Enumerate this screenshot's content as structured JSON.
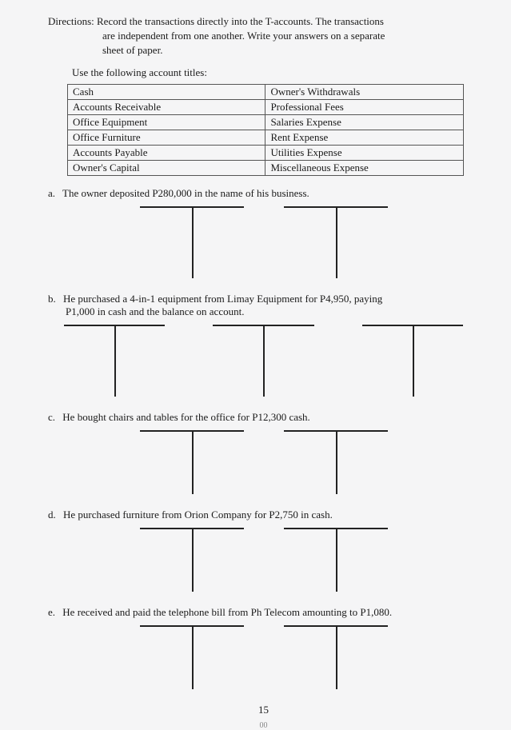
{
  "directions": {
    "label": "Directions:",
    "text1": "Record the transactions directly into the T-accounts. The transactions",
    "text2": "are independent from one another. Write your answers on a separate",
    "text3": "sheet of paper."
  },
  "use_titles": "Use the following account titles:",
  "accounts": {
    "left": [
      "Cash",
      "Accounts Receivable",
      "Office Equipment",
      "Office Furniture",
      "Accounts Payable",
      "Owner's Capital"
    ],
    "right": [
      "Owner's Withdrawals",
      "Professional Fees",
      "Salaries Expense",
      "Rent Expense",
      "Utilities Expense",
      "Miscellaneous Expense"
    ]
  },
  "items": {
    "a": {
      "label": "a.",
      "text": "The owner deposited P280,000 in the name of his business.",
      "t_count": 2
    },
    "b": {
      "label": "b.",
      "text1": "He purchased a 4-in-1 equipment from Limay Equipment for P4,950, paying",
      "text2": "P1,000 in cash and the balance on account.",
      "t_count": 3
    },
    "c": {
      "label": "c.",
      "text": "He bought chairs and tables for the office for P12,300 cash.",
      "t_count": 2
    },
    "d": {
      "label": "d.",
      "text": "He purchased furniture from Orion Company for P2,750 in cash.",
      "t_count": 2
    },
    "e": {
      "label": "e.",
      "text": "He received and paid the telephone bill from Ph Telecom amounting to P1,080.",
      "t_count": 2
    }
  },
  "page_number": "15",
  "footer": "00"
}
